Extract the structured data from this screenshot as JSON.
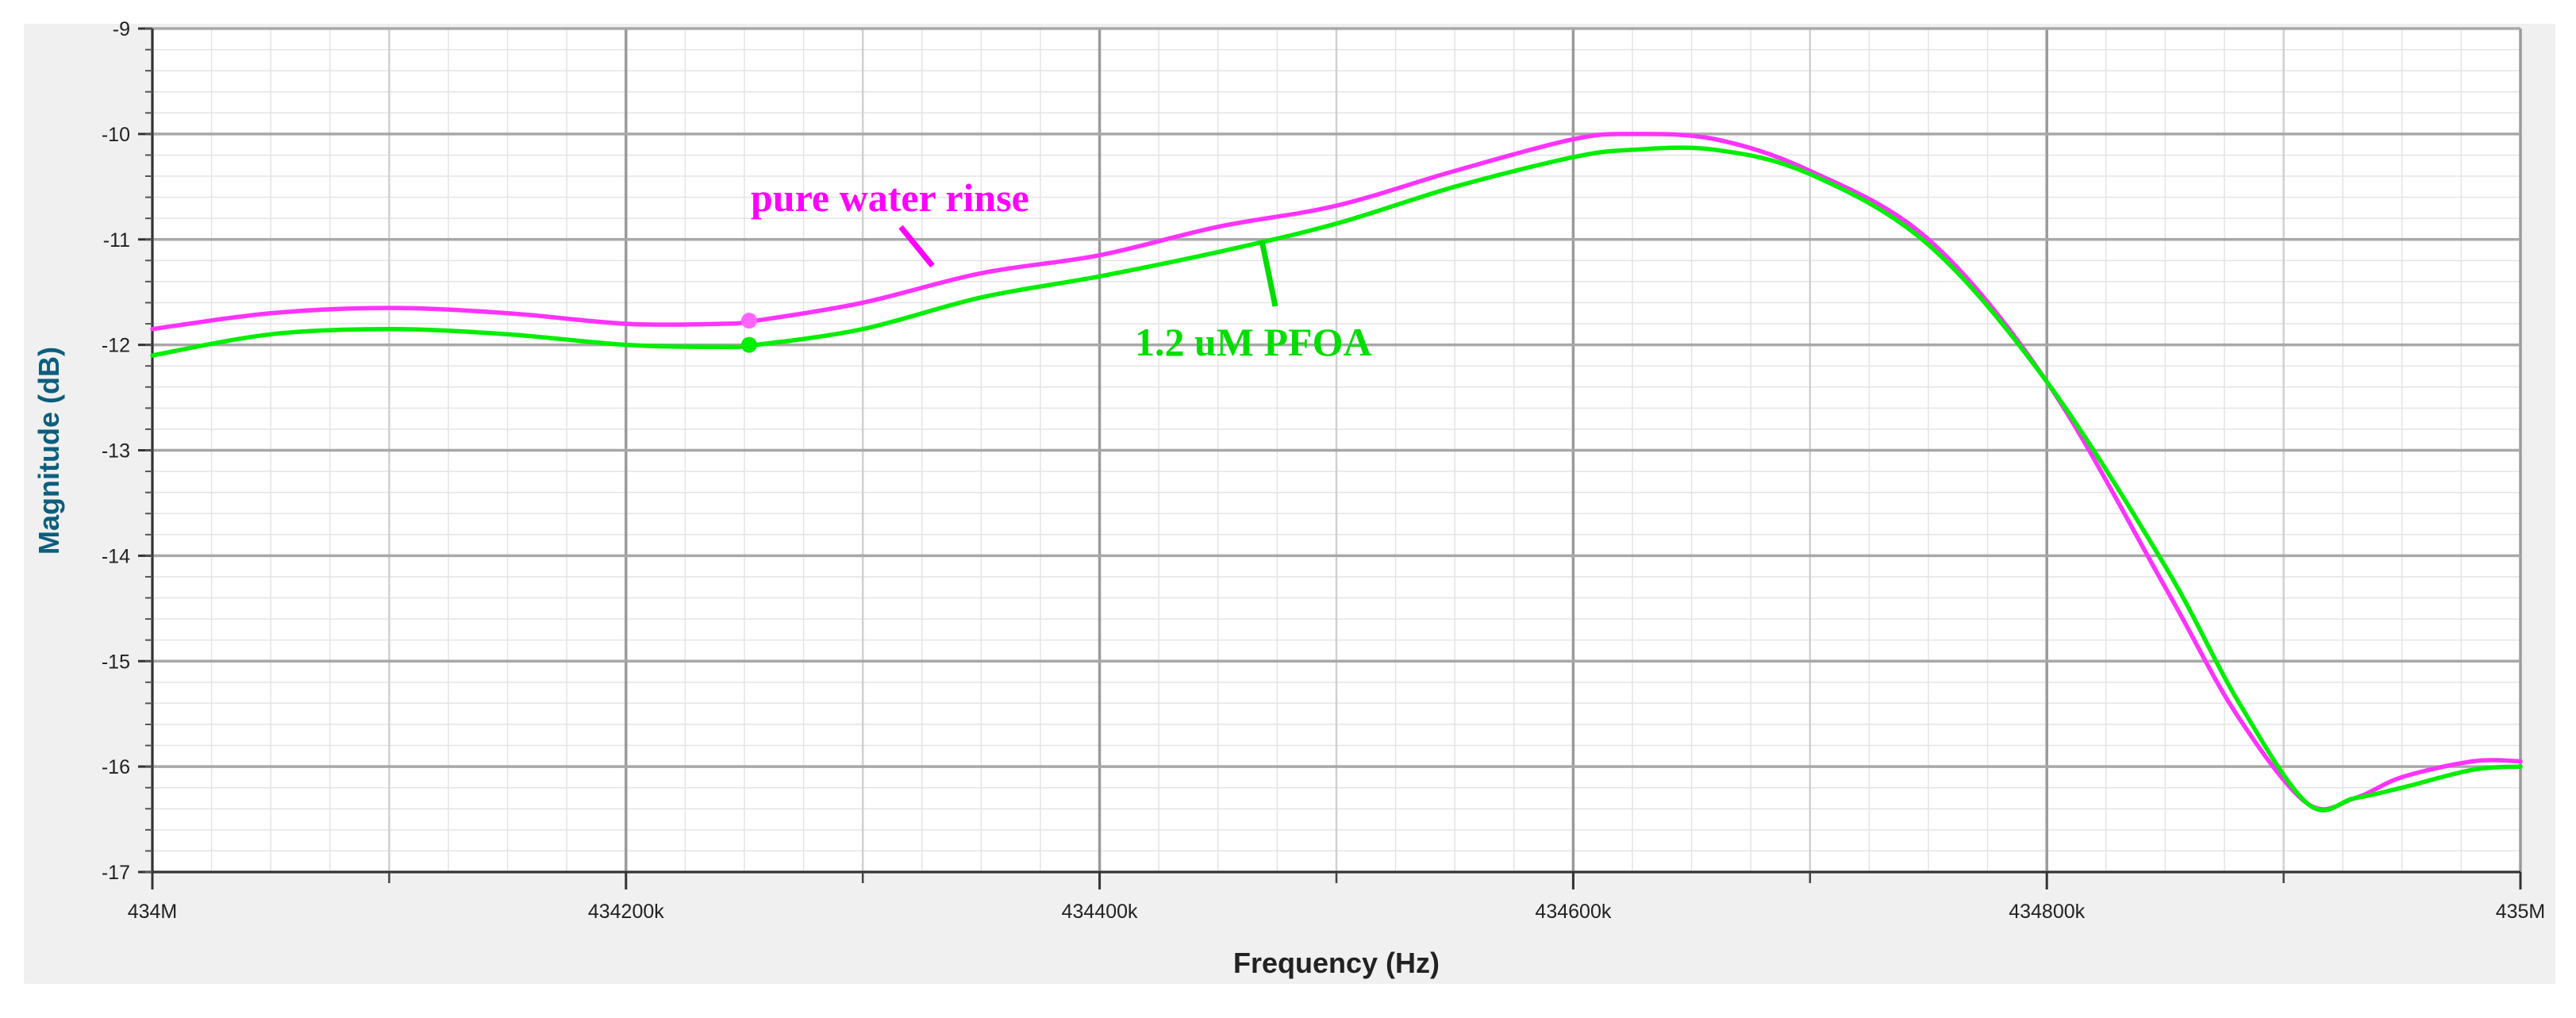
{
  "chart_data": {
    "type": "line",
    "title": "",
    "xlabel": "Frequency (Hz)",
    "ylabel": "Magnitude (dB)",
    "xlim": [
      434000000,
      435000000
    ],
    "ylim": [
      -17,
      -9
    ],
    "x_ticks": [
      {
        "value": 434000000,
        "label": "434M"
      },
      {
        "value": 434200000,
        "label": "434200k"
      },
      {
        "value": 434400000,
        "label": "434400k"
      },
      {
        "value": 434600000,
        "label": "434600k"
      },
      {
        "value": 434800000,
        "label": "434800k"
      },
      {
        "value": 435000000,
        "label": "435M"
      }
    ],
    "y_ticks": [
      {
        "value": -9,
        "label": "-9"
      },
      {
        "value": -10,
        "label": "-10"
      },
      {
        "value": -11,
        "label": "-11"
      },
      {
        "value": -12,
        "label": "-12"
      },
      {
        "value": -13,
        "label": "-13"
      },
      {
        "value": -14,
        "label": "-14"
      },
      {
        "value": -15,
        "label": "-15"
      },
      {
        "value": -16,
        "label": "-16"
      },
      {
        "value": -17,
        "label": "-17"
      }
    ],
    "grid": true,
    "legend": "none",
    "series": [
      {
        "name": "pure water rinse",
        "color": "#ff33ff",
        "x": [
          434000000,
          434050000,
          434100000,
          434150000,
          434200000,
          434240000,
          434255000,
          434300000,
          434350000,
          434400000,
          434450000,
          434500000,
          434550000,
          434600000,
          434625000,
          434660000,
          434700000,
          434750000,
          434800000,
          434850000,
          434880000,
          434910000,
          434930000,
          434950000,
          434980000,
          435000000
        ],
        "y": [
          -11.85,
          -11.7,
          -11.65,
          -11.7,
          -11.8,
          -11.8,
          -11.77,
          -11.6,
          -11.32,
          -11.15,
          -10.88,
          -10.68,
          -10.35,
          -10.05,
          -10.0,
          -10.05,
          -10.35,
          -11.0,
          -12.35,
          -14.3,
          -15.5,
          -16.35,
          -16.3,
          -16.1,
          -15.95,
          -15.95
        ]
      },
      {
        "name": "1.2 uM PFOA",
        "color": "#00ee00",
        "x": [
          434000000,
          434050000,
          434100000,
          434150000,
          434200000,
          434240000,
          434255000,
          434300000,
          434350000,
          434400000,
          434450000,
          434500000,
          434550000,
          434600000,
          434625000,
          434660000,
          434700000,
          434750000,
          434800000,
          434850000,
          434880000,
          434910000,
          434930000,
          434950000,
          434980000,
          435000000
        ],
        "y": [
          -12.1,
          -11.9,
          -11.85,
          -11.9,
          -12.0,
          -12.02,
          -12.0,
          -11.85,
          -11.55,
          -11.35,
          -11.12,
          -10.85,
          -10.5,
          -10.22,
          -10.15,
          -10.15,
          -10.38,
          -11.05,
          -12.35,
          -14.1,
          -15.35,
          -16.35,
          -16.3,
          -16.2,
          -16.03,
          -16.0
        ]
      }
    ],
    "annotations": [
      {
        "text": "pure water rinse",
        "color": "#ff00ff"
      },
      {
        "text": "1.2 uM PFOA",
        "color": "#00dd00"
      }
    ],
    "markers": [
      {
        "x": 434252000,
        "y": -11.77,
        "color": "#ff66ff"
      },
      {
        "x": 434252000,
        "y": -12.0,
        "color": "#00ee00"
      }
    ]
  }
}
